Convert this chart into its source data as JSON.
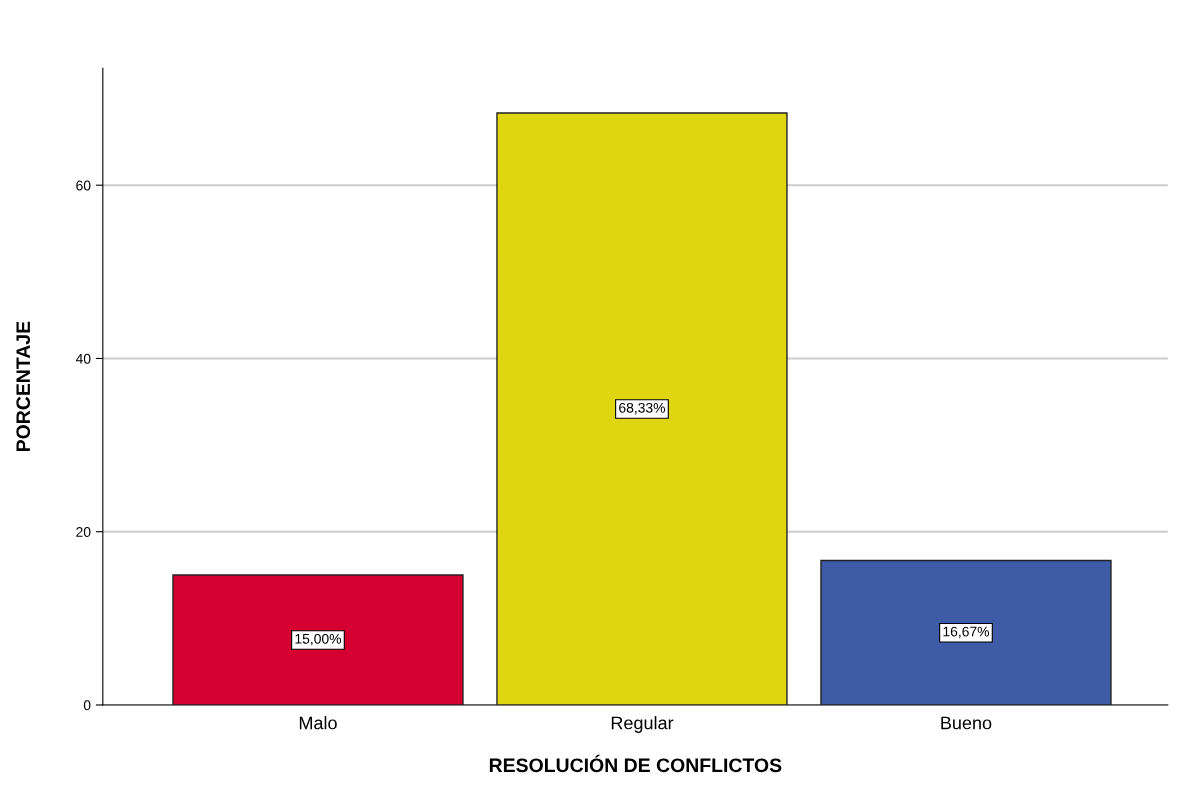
{
  "chart_data": {
    "type": "bar",
    "xlabel": "RESOLUCIÓN DE CONFLICTOS",
    "ylabel": "PORCENTAJE",
    "categories": [
      "Malo",
      "Regular",
      "Bueno"
    ],
    "values": [
      15.0,
      68.33,
      16.67
    ],
    "colors": [
      "#d5002f",
      "#e0d610",
      "#3e5ba8"
    ],
    "value_labels": [
      "15,00%",
      "68,33%",
      "16,67%"
    ],
    "ylim": [
      0,
      73.5
    ],
    "yticks": [
      0,
      20,
      40,
      60
    ],
    "grid": "y",
    "legend": false
  }
}
